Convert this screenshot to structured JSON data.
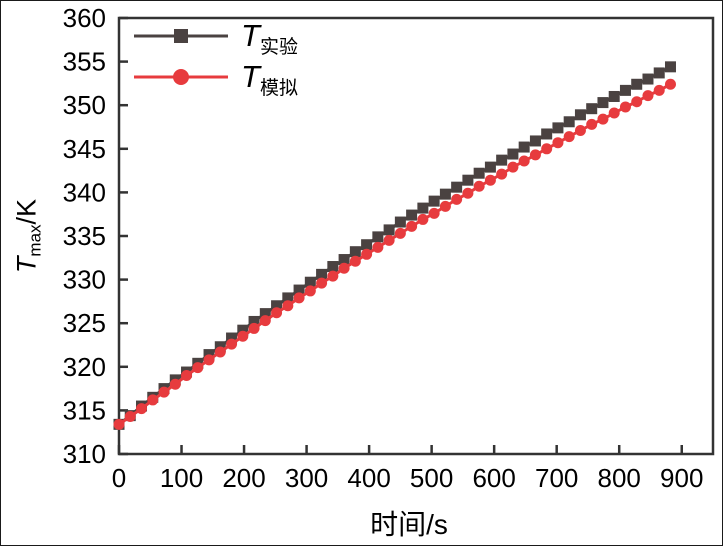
{
  "colors": {
    "background": "#ffffff",
    "frame": "#333333",
    "text": "#000000",
    "experimental": "#4a4241",
    "simulated": "#e73b3e"
  },
  "legend": {
    "items": [
      {
        "prefix": "T",
        "sub": "实验",
        "marker": "square"
      },
      {
        "prefix": "T",
        "sub": "模拟",
        "marker": "circle"
      }
    ]
  },
  "axes": {
    "x": {
      "title": "时间/s"
    },
    "y": {
      "prefix": "T",
      "sub": "max",
      "unit": "/K"
    }
  },
  "chart_data": {
    "type": "line",
    "title": "",
    "xlabel": "时间/s",
    "ylabel": "Tmax/K",
    "xlim": [
      0,
      950
    ],
    "ylim": [
      310,
      360
    ],
    "xticks": [
      0,
      100,
      200,
      300,
      400,
      500,
      600,
      700,
      800,
      900
    ],
    "yticks": [
      310,
      315,
      320,
      325,
      330,
      335,
      340,
      345,
      350,
      355,
      360
    ],
    "grid": false,
    "legend_position": "top-left",
    "x": [
      0,
      18,
      36,
      54,
      72,
      90,
      108,
      126,
      144,
      162,
      180,
      198,
      216,
      234,
      252,
      270,
      288,
      306,
      324,
      342,
      360,
      378,
      396,
      414,
      432,
      450,
      468,
      486,
      504,
      522,
      540,
      558,
      576,
      594,
      612,
      630,
      648,
      666,
      684,
      702,
      720,
      738,
      756,
      774,
      792,
      810,
      828,
      846,
      864,
      882
    ],
    "series": [
      {
        "name": "T实验",
        "id": "experimental",
        "marker": "square",
        "color": "#4a4241",
        "values": [
          313.4,
          314.4,
          315.5,
          316.5,
          317.5,
          318.5,
          319.4,
          320.4,
          321.4,
          322.3,
          323.3,
          324.2,
          325.2,
          326.1,
          327.0,
          327.9,
          328.8,
          329.7,
          330.6,
          331.5,
          332.3,
          333.2,
          334.0,
          334.9,
          335.7,
          336.6,
          337.4,
          338.2,
          339.0,
          339.8,
          340.6,
          341.4,
          342.2,
          342.9,
          343.7,
          344.4,
          345.2,
          345.9,
          346.7,
          347.4,
          348.1,
          348.9,
          349.6,
          350.3,
          351.0,
          351.7,
          352.4,
          353.0,
          353.7,
          354.4
        ]
      },
      {
        "name": "T模拟",
        "id": "simulated",
        "marker": "circle",
        "color": "#e73b3e",
        "values": [
          313.4,
          314.3,
          315.2,
          316.2,
          317.1,
          318.0,
          319.0,
          319.9,
          320.8,
          321.7,
          322.6,
          323.5,
          324.4,
          325.3,
          326.2,
          327.0,
          327.9,
          328.7,
          329.6,
          330.4,
          331.3,
          332.1,
          332.9,
          333.7,
          334.5,
          335.3,
          336.1,
          336.9,
          337.6,
          338.4,
          339.2,
          339.9,
          340.7,
          341.4,
          342.1,
          342.9,
          343.6,
          344.3,
          345.0,
          345.7,
          346.4,
          347.1,
          347.8,
          348.4,
          349.1,
          349.8,
          350.4,
          351.1,
          351.7,
          352.4
        ]
      }
    ]
  }
}
